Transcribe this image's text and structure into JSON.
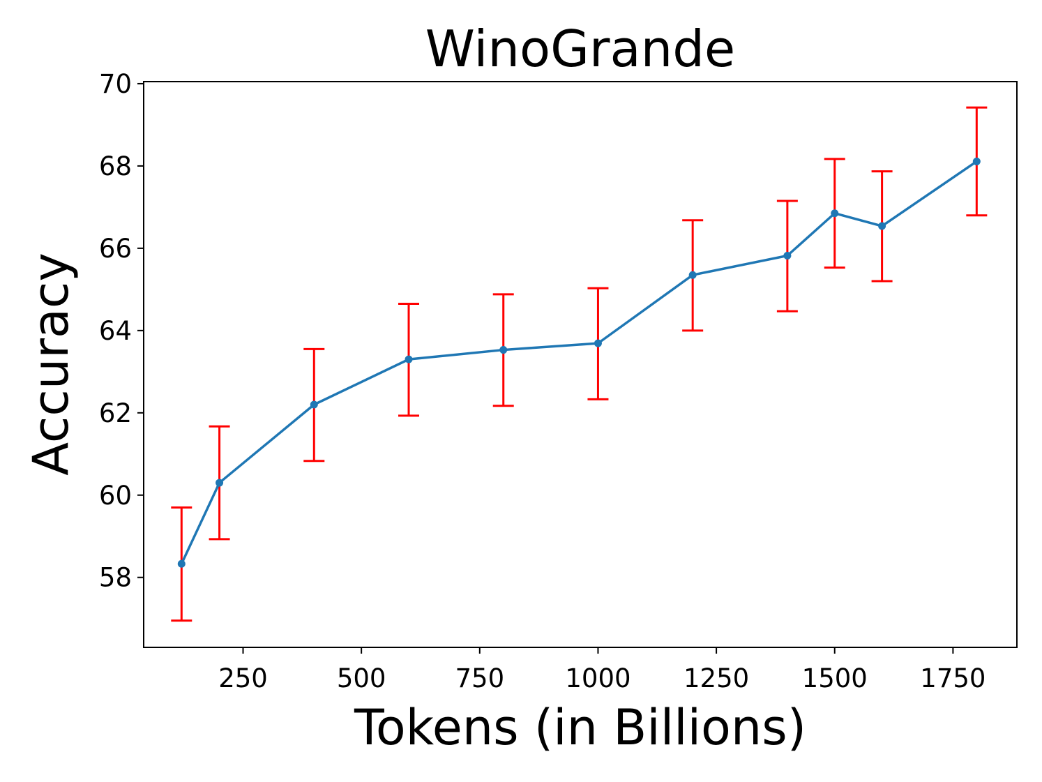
{
  "chart_data": {
    "type": "line",
    "title": "WinoGrande",
    "xlabel": "Tokens (in Billions)",
    "ylabel": "Accuracy",
    "xlim": [
      40,
      1885
    ],
    "ylim": [
      56.3,
      70.05
    ],
    "xticks": [
      250,
      500,
      750,
      1000,
      1250,
      1500,
      1750
    ],
    "yticks": [
      58,
      60,
      62,
      64,
      66,
      68,
      70
    ],
    "grid": false,
    "legend": "none",
    "series": [
      {
        "line_color": "#1f77b4",
        "errorbar_color": "#ff0000",
        "x": [
          120,
          200,
          400,
          600,
          800,
          1000,
          1200,
          1400,
          1500,
          1600,
          1800
        ],
        "y": [
          58.33,
          60.3,
          62.2,
          63.3,
          63.53,
          63.69,
          65.35,
          65.82,
          66.85,
          66.54,
          68.11
        ],
        "error_lower": [
          56.95,
          58.93,
          60.83,
          61.93,
          62.17,
          62.33,
          64.0,
          64.47,
          65.53,
          65.2,
          66.8
        ],
        "error_upper": [
          59.7,
          61.67,
          63.55,
          64.65,
          64.88,
          65.03,
          66.68,
          67.15,
          68.17,
          67.87,
          69.42
        ]
      }
    ]
  }
}
